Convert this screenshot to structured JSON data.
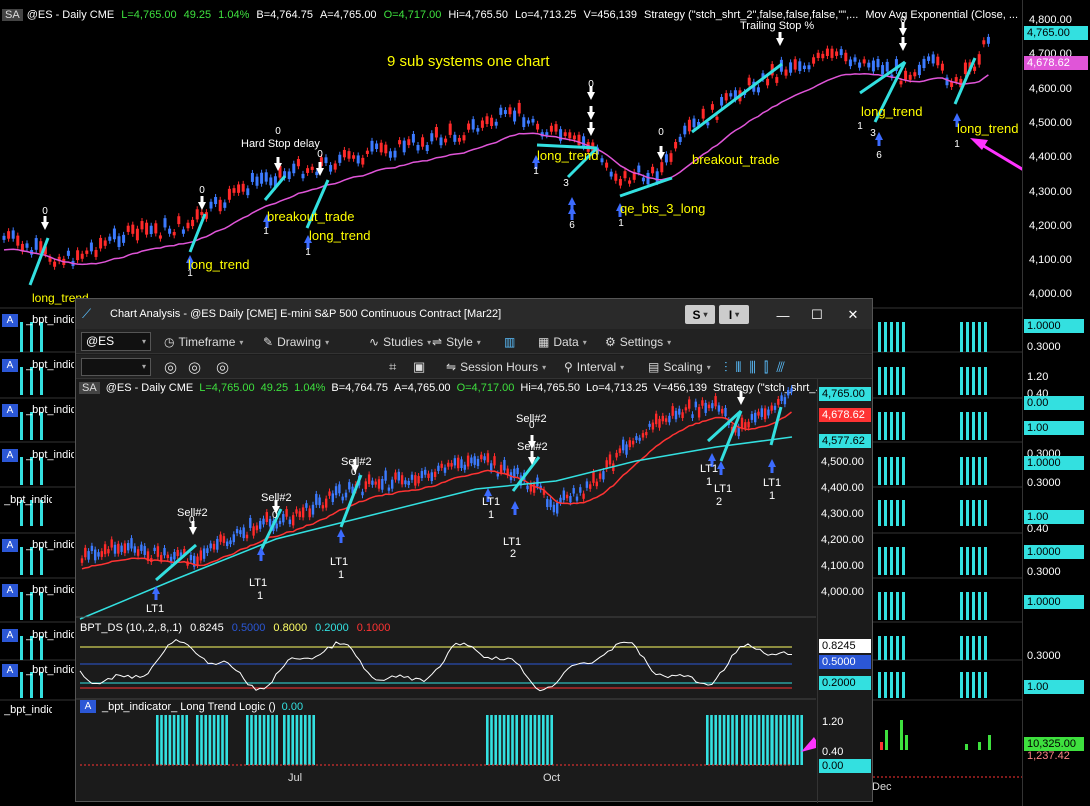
{
  "main_chart": {
    "sa_badge": "SA",
    "info_line": [
      {
        "text": "@ES - Daily  CME",
        "color": "#ffffff"
      },
      {
        "text": "L=4,765.00",
        "color": "#3ee03e"
      },
      {
        "text": "49.25",
        "color": "#3ee03e"
      },
      {
        "text": "1.04%",
        "color": "#3ee03e"
      },
      {
        "text": "B=4,764.75",
        "color": "#ffffff"
      },
      {
        "text": "A=4,765.00",
        "color": "#ffffff"
      },
      {
        "text": "O=4,717.00",
        "color": "#3ee03e"
      },
      {
        "text": "Hi=4,765.50",
        "color": "#ffffff"
      },
      {
        "text": "Lo=4,713.25",
        "color": "#ffffff"
      },
      {
        "text": "V=456,139",
        "color": "#ffffff"
      },
      {
        "text": "Strategy (\"stch_shrt_2\",false,false,false,\"\",...",
        "color": "#ffffff"
      },
      {
        "text": "Mov Avg Exponential (Close, ...",
        "color": "#ffffff"
      }
    ],
    "headline": "9 sub systems one chart",
    "price_axis": [
      "4,800.00",
      "4,700.00",
      "4,600.00",
      "4,500.00",
      "4,400.00",
      "4,300.00",
      "4,200.00",
      "4,100.00",
      "4,000.00"
    ],
    "last_price": "4,765.00",
    "ma_price": "4,678.62",
    "labels": {
      "trailing_stop": "Trailing Stop %",
      "hard_stop": "Hard Stop delay",
      "long_trend": "long_trend",
      "breakout_trade": "breakout_trade",
      "qe_bts": "qe_bts_3_long",
      "overlap": "long_trend"
    },
    "indicator_tag": "A",
    "indicator_name": "_bpt_indicator_",
    "right_values": [
      "1.0000",
      "0.3000",
      "1.20",
      "0.40",
      "0.00",
      "1.00",
      "0.3000",
      "1.0000",
      "0.3000",
      "1.00",
      "0.40",
      "1.0000",
      "0.3000",
      "1.0000",
      "0.3000",
      "1.00",
      "10,325.00",
      "1,237.42"
    ],
    "bottom_date": "Dec"
  },
  "window": {
    "title": "Chart Analysis - @ES Daily [CME] E-mini S&P 500 Continuous Contract [Mar22]",
    "s_button": "S",
    "i_button": "I",
    "toolbar1": {
      "symbol": "@ES",
      "timeframe": "Timeframe",
      "drawing": "Drawing",
      "studies": "Studies",
      "style": "Style",
      "data": "Data",
      "settings": "Settings"
    },
    "toolbar2": {
      "session_hours": "Session Hours",
      "interval": "Interval",
      "scaling": "Scaling"
    },
    "chart": {
      "sa_badge": "SA",
      "info_line": [
        {
          "text": "@ES - Daily  CME",
          "color": "#ffffff"
        },
        {
          "text": "L=4,765.00",
          "color": "#3ee03e"
        },
        {
          "text": "49.25",
          "color": "#3ee03e"
        },
        {
          "text": "1.04%",
          "color": "#3ee03e"
        },
        {
          "text": "B=4,764.75",
          "color": "#ffffff"
        },
        {
          "text": "A=4,765.00",
          "color": "#ffffff"
        },
        {
          "text": "O=4,717.00",
          "color": "#3ee03e"
        },
        {
          "text": "Hi=4,765.50",
          "color": "#ffffff"
        },
        {
          "text": "Lo=4,713.25",
          "color": "#ffffff"
        },
        {
          "text": "V=456,139",
          "color": "#ffffff"
        },
        {
          "text": "Strategy (\"stch_shrt_...",
          "color": "#ffffff"
        }
      ],
      "price_axis": [
        "4,500.00",
        "4,400.00",
        "4,300.00",
        "4,200.00",
        "4,100.00",
        "4,000.00"
      ],
      "last_price": "4,765.00",
      "red_ma": "4,678.62",
      "cyan_ma": "4,577.62",
      "sell_label": "Sell#2",
      "lt_label": "LT1"
    },
    "bpt": {
      "label": "BPT_DS (10,.2,.8,.1)",
      "values": [
        {
          "text": "0.8245",
          "color": "#ffffff"
        },
        {
          "text": "0.5000",
          "color": "#2b57d6"
        },
        {
          "text": "0.8000",
          "color": "#ffff66"
        },
        {
          "text": "0.2000",
          "color": "#33e0e0"
        },
        {
          "text": "0.1000",
          "color": "#ff3333"
        }
      ],
      "axis_boxes": [
        {
          "text": "0.8245",
          "bg": "#ffffff",
          "fg": "#000000"
        },
        {
          "text": "0.5000",
          "bg": "#2b57d6",
          "fg": "#ffffff"
        },
        {
          "text": "0.2000",
          "bg": "#33e0e0",
          "fg": "#000000"
        }
      ]
    },
    "logic": {
      "tag": "A",
      "label": "_bpt_indicator_ Long Trend Logic ()",
      "value": "0.00",
      "axis": [
        "1.20",
        "0.40"
      ],
      "box": "0.00"
    },
    "months": [
      "Jul",
      "Oct"
    ]
  }
}
